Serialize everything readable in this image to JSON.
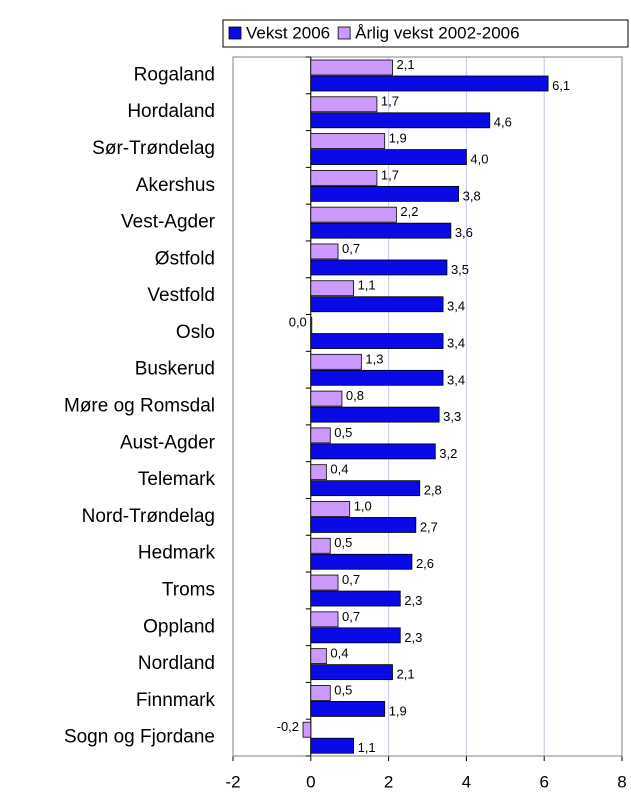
{
  "chart_data": {
    "type": "bar",
    "orientation": "horizontal",
    "categories": [
      "Rogaland",
      "Hordaland",
      "Sør-Trøndelag",
      "Akershus",
      "Vest-Agder",
      "Østfold",
      "Vestfold",
      "Oslo",
      "Buskerud",
      "Møre og Romsdal",
      "Aust-Agder",
      "Telemark",
      "Nord-Trøndelag",
      "Hedmark",
      "Troms",
      "Oppland",
      "Nordland",
      "Finnmark",
      "Sogn og Fjordane"
    ],
    "series": [
      {
        "name": "Vekst 2006",
        "color": "#0a0ae6",
        "values": [
          6.1,
          4.6,
          4.0,
          3.8,
          3.6,
          3.5,
          3.4,
          3.4,
          3.4,
          3.3,
          3.2,
          2.8,
          2.7,
          2.6,
          2.3,
          2.3,
          2.1,
          1.9,
          1.1
        ],
        "value_labels": [
          "6,1",
          "4,6",
          "4,0",
          "3,8",
          "3,6",
          "3,5",
          "3,4",
          "3,4",
          "3,4",
          "3,3",
          "3,2",
          "2,8",
          "2,7",
          "2,6",
          "2,3",
          "2,3",
          "2,1",
          "1,9",
          "1,1"
        ]
      },
      {
        "name": "Årlig vekst 2002-2006",
        "color": "#cc99ff",
        "values": [
          2.1,
          1.7,
          1.9,
          1.7,
          2.2,
          0.7,
          1.1,
          0.0,
          1.3,
          0.8,
          0.5,
          0.4,
          1.0,
          0.5,
          0.7,
          0.7,
          0.4,
          0.5,
          -0.2
        ],
        "value_labels": [
          "2,1",
          "1,7",
          "1,9",
          "1,7",
          "2,2",
          "0,7",
          "1,1",
          "0,0",
          "1,3",
          "0,8",
          "0,5",
          "0,4",
          "1,0",
          "0,5",
          "0,7",
          "0,7",
          "0,4",
          "0,5",
          "-0,2"
        ]
      }
    ],
    "xlim": [
      -2,
      8
    ],
    "xticks": [
      -2,
      0,
      2,
      4,
      6,
      8
    ],
    "grid": true,
    "legend": "top"
  }
}
